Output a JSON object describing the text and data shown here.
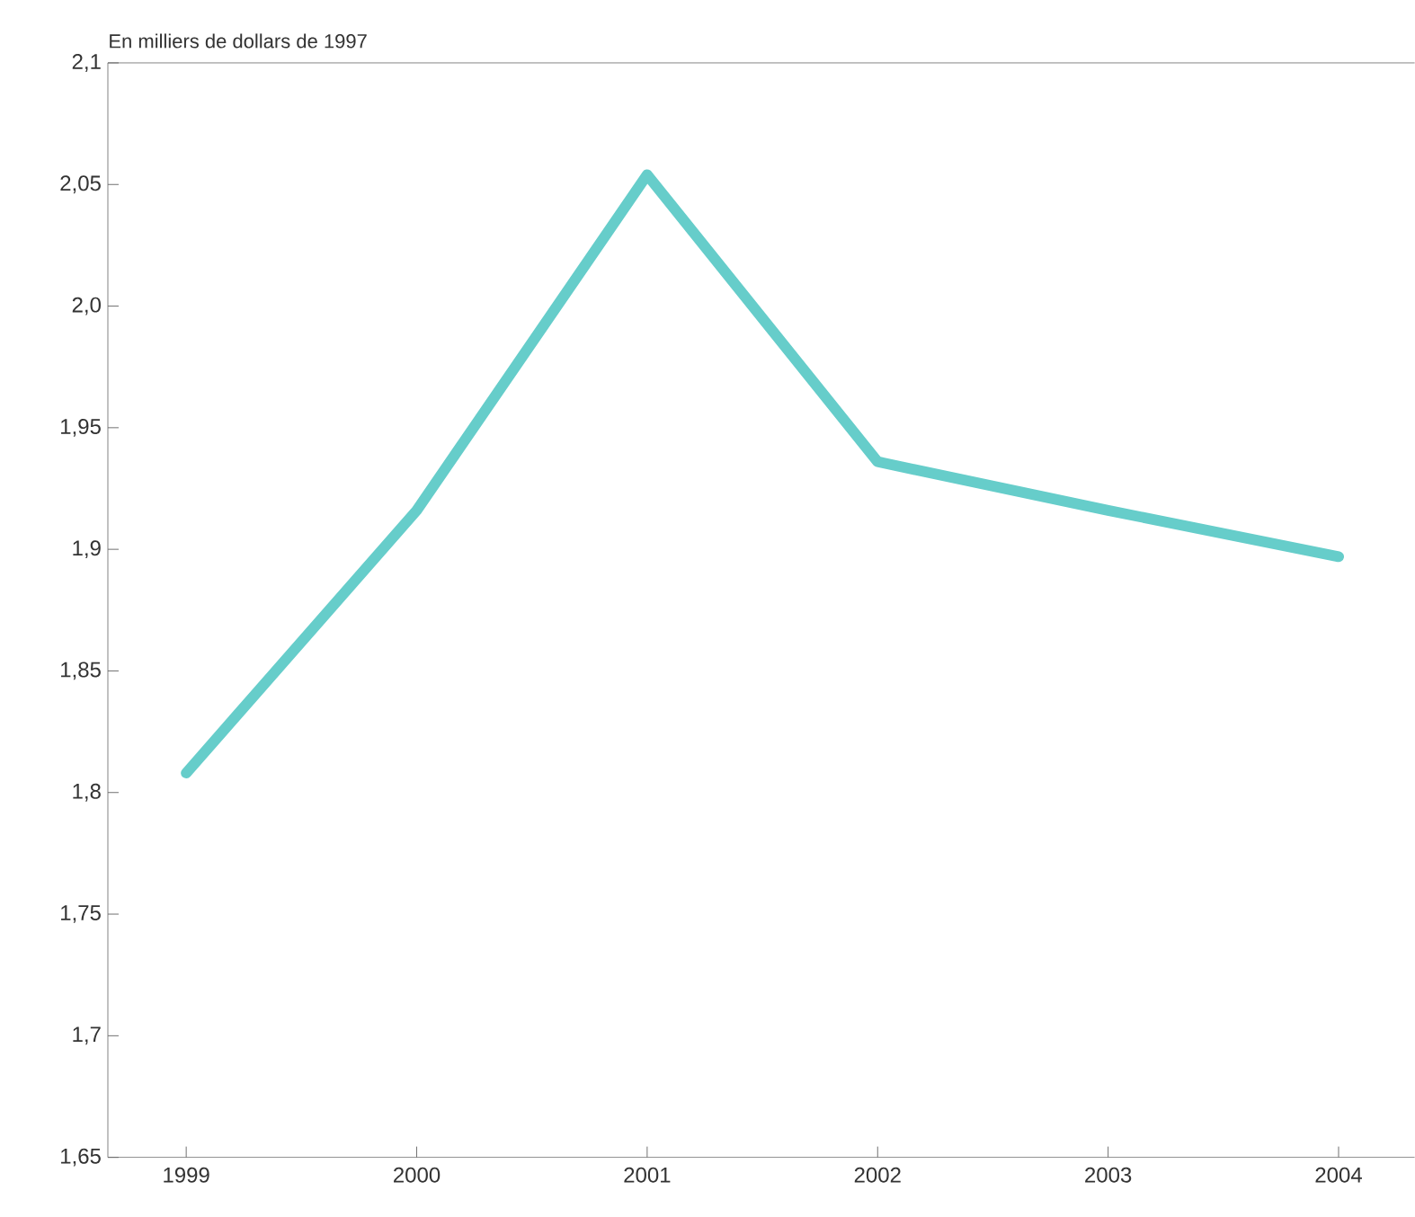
{
  "chart_data": {
    "type": "line",
    "ylabel": "En milliers de dollars de 1997",
    "categories": [
      "1999",
      "2000",
      "2001",
      "2002",
      "2003",
      "2004"
    ],
    "series": [
      {
        "color": "#66cdca",
        "values": [
          1.808,
          1.916,
          2.054,
          1.936,
          1.916,
          1.897
        ]
      }
    ],
    "ylim": [
      1.65,
      2.1
    ],
    "yticks": [
      {
        "value": 1.65,
        "label": "1,65"
      },
      {
        "value": 1.7,
        "label": "1,7"
      },
      {
        "value": 1.75,
        "label": "1,75"
      },
      {
        "value": 1.8,
        "label": "1,8"
      },
      {
        "value": 1.85,
        "label": "1,85"
      },
      {
        "value": 1.9,
        "label": "1,9"
      },
      {
        "value": 1.95,
        "label": "1,95"
      },
      {
        "value": 2.0,
        "label": "2,0"
      },
      {
        "value": 2.05,
        "label": "2,05"
      },
      {
        "value": 2.1,
        "label": "2,1"
      }
    ],
    "grid": false,
    "marker": "none",
    "line_style": "solid"
  }
}
